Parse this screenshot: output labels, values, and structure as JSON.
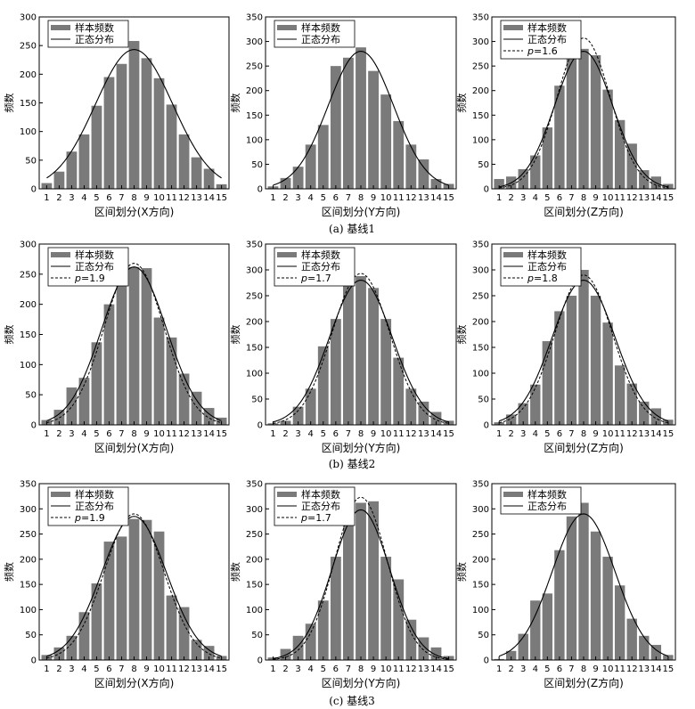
{
  "colors": {
    "bar": "#7a7a7a",
    "line": "#000000",
    "background": "#ffffff"
  },
  "legend": {
    "hist": "样本频数",
    "normal": "正态分布",
    "p_prefix": "p"
  },
  "ylabel": "频数",
  "row_captions": [
    "(a) 基线1",
    "(b) 基线2",
    "(c) 基线3"
  ],
  "chart_data": [
    {
      "type": "bar",
      "baseline": "基线1",
      "axis_label": "X",
      "title": "",
      "xlabel": "区间划分(X方向)",
      "ylabel": "频数",
      "ylim": [
        0,
        300
      ],
      "yticks": [
        0,
        50,
        100,
        150,
        200,
        250,
        300
      ],
      "categories": [
        "1",
        "2",
        "3",
        "4",
        "5",
        "6",
        "7",
        "8",
        "9",
        "10",
        "11",
        "12",
        "13",
        "14",
        "15"
      ],
      "values": [
        10,
        30,
        65,
        95,
        145,
        195,
        218,
        258,
        228,
        193,
        147,
        95,
        55,
        35,
        8
      ],
      "normal_peak": 243,
      "normal_sigma": 3.1,
      "p": null,
      "p_peak": null,
      "p_label": ""
    },
    {
      "type": "bar",
      "baseline": "基线1",
      "axis_label": "Y",
      "title": "",
      "xlabel": "区间划分(Y方向)",
      "ylabel": "频数",
      "ylim": [
        0,
        350
      ],
      "yticks": [
        0,
        50,
        100,
        150,
        200,
        250,
        300,
        350
      ],
      "categories": [
        "1",
        "2",
        "3",
        "4",
        "5",
        "6",
        "7",
        "8",
        "9",
        "10",
        "11",
        "12",
        "13",
        "14",
        "15"
      ],
      "values": [
        5,
        22,
        45,
        90,
        130,
        250,
        267,
        288,
        240,
        192,
        138,
        90,
        60,
        20,
        10
      ],
      "normal_peak": 280,
      "normal_sigma": 2.6,
      "p": null,
      "p_peak": null,
      "p_label": ""
    },
    {
      "type": "bar",
      "baseline": "基线1",
      "axis_label": "Z",
      "title": "",
      "xlabel": "区间划分(Z方向)",
      "ylabel": "频数",
      "ylim": [
        0,
        350
      ],
      "yticks": [
        0,
        50,
        100,
        150,
        200,
        250,
        300,
        350
      ],
      "categories": [
        "1",
        "2",
        "3",
        "4",
        "5",
        "6",
        "7",
        "8",
        "9",
        "10",
        "11",
        "12",
        "13",
        "14",
        "15"
      ],
      "values": [
        20,
        25,
        40,
        68,
        125,
        210,
        280,
        285,
        272,
        202,
        140,
        92,
        38,
        25,
        10
      ],
      "normal_peak": 280,
      "normal_sigma": 2.4,
      "p": 1.6,
      "p_peak": 307,
      "p_label": "=1.6"
    },
    {
      "type": "bar",
      "baseline": "基线2",
      "axis_label": "X",
      "title": "",
      "xlabel": "区间划分(X方向)",
      "ylabel": "频数",
      "ylim": [
        0,
        300
      ],
      "yticks": [
        0,
        50,
        100,
        150,
        200,
        250,
        300
      ],
      "categories": [
        "1",
        "2",
        "3",
        "4",
        "5",
        "6",
        "7",
        "8",
        "9",
        "10",
        "11",
        "12",
        "13",
        "14",
        "15"
      ],
      "values": [
        8,
        25,
        62,
        78,
        137,
        200,
        263,
        262,
        260,
        178,
        145,
        85,
        55,
        28,
        12
      ],
      "normal_peak": 262,
      "normal_sigma": 2.6,
      "p": 1.9,
      "p_peak": 268,
      "p_label": "=1.9"
    },
    {
      "type": "bar",
      "baseline": "基线2",
      "axis_label": "Y",
      "title": "",
      "xlabel": "区间划分(Y方向)",
      "ylabel": "频数",
      "ylim": [
        0,
        350
      ],
      "yticks": [
        0,
        50,
        100,
        150,
        200,
        250,
        300,
        350
      ],
      "categories": [
        "1",
        "2",
        "3",
        "4",
        "5",
        "6",
        "7",
        "8",
        "9",
        "10",
        "11",
        "12",
        "13",
        "14",
        "15"
      ],
      "values": [
        3,
        8,
        35,
        70,
        152,
        205,
        270,
        288,
        265,
        205,
        130,
        70,
        45,
        25,
        8
      ],
      "normal_peak": 280,
      "normal_sigma": 2.5,
      "p": 1.7,
      "p_peak": 293,
      "p_label": "=1.7"
    },
    {
      "type": "bar",
      "baseline": "基线2",
      "axis_label": "Z",
      "title": "",
      "xlabel": "区间划分(Z方向)",
      "ylabel": "频数",
      "ylim": [
        0,
        350
      ],
      "yticks": [
        0,
        50,
        100,
        150,
        200,
        250,
        300,
        350
      ],
      "categories": [
        "1",
        "2",
        "3",
        "4",
        "5",
        "6",
        "7",
        "8",
        "9",
        "10",
        "11",
        "12",
        "13",
        "14",
        "15"
      ],
      "values": [
        5,
        20,
        42,
        78,
        162,
        220,
        250,
        300,
        250,
        198,
        115,
        80,
        45,
        32,
        10
      ],
      "normal_peak": 280,
      "normal_sigma": 2.6,
      "p": 1.8,
      "p_peak": 290,
      "p_label": "=1.8"
    },
    {
      "type": "bar",
      "baseline": "基线3",
      "axis_label": "X",
      "title": "",
      "xlabel": "区间划分(X方向)",
      "ylabel": "频数",
      "ylim": [
        0,
        350
      ],
      "yticks": [
        0,
        50,
        100,
        150,
        200,
        250,
        300,
        350
      ],
      "categories": [
        "1",
        "2",
        "3",
        "4",
        "5",
        "6",
        "7",
        "8",
        "9",
        "10",
        "11",
        "12",
        "13",
        "14",
        "15"
      ],
      "values": [
        10,
        25,
        48,
        95,
        152,
        235,
        245,
        280,
        278,
        255,
        128,
        105,
        40,
        28,
        8
      ],
      "normal_peak": 285,
      "normal_sigma": 2.6,
      "p": 1.9,
      "p_peak": 290,
      "p_label": "=1.9"
    },
    {
      "type": "bar",
      "baseline": "基线3",
      "axis_label": "Y",
      "title": "",
      "xlabel": "区间划分(Y方向)",
      "ylabel": "频数",
      "ylim": [
        0,
        350
      ],
      "yticks": [
        0,
        50,
        100,
        150,
        200,
        250,
        300,
        350
      ],
      "categories": [
        "1",
        "2",
        "3",
        "4",
        "5",
        "6",
        "7",
        "8",
        "9",
        "10",
        "11",
        "12",
        "13",
        "14",
        "15"
      ],
      "values": [
        5,
        22,
        48,
        72,
        118,
        205,
        275,
        312,
        315,
        205,
        160,
        80,
        45,
        25,
        8
      ],
      "normal_peak": 298,
      "normal_sigma": 2.3,
      "p": 1.7,
      "p_peak": 323,
      "p_label": "=1.7"
    },
    {
      "type": "bar",
      "baseline": "基线3",
      "axis_label": "Z",
      "title": "",
      "xlabel": "区间划分(Z方向)",
      "ylabel": "频数",
      "ylim": [
        0,
        350
      ],
      "yticks": [
        0,
        50,
        100,
        150,
        200,
        250,
        300,
        350
      ],
      "categories": [
        "1",
        "2",
        "3",
        "4",
        "5",
        "6",
        "7",
        "8",
        "9",
        "10",
        "11",
        "12",
        "13",
        "14",
        "15"
      ],
      "values": [
        2,
        18,
        52,
        118,
        132,
        218,
        285,
        312,
        255,
        205,
        148,
        82,
        48,
        30,
        10
      ],
      "normal_peak": 290,
      "normal_sigma": 2.6,
      "p": null,
      "p_peak": null,
      "p_label": ""
    }
  ]
}
